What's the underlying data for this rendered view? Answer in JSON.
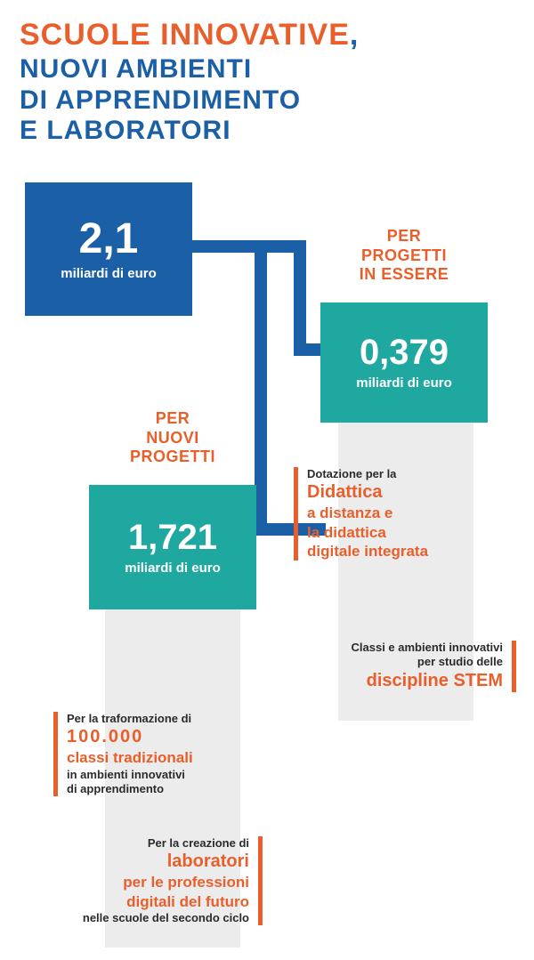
{
  "title": {
    "line1_orange": "SCUOLE INNOVATIVE",
    "comma": ",",
    "rest": "NUOVI AMBIENTI\nDI APPRENDIMENTO\nE LABORATORI"
  },
  "colors": {
    "orange": "#e95f2b",
    "blue": "#1b5fa6",
    "teal": "#1fa89f",
    "grey": "#ececec",
    "text": "#2b2b2b"
  },
  "boxes": {
    "main": {
      "value": "2,1",
      "unit": "miliardi di euro"
    },
    "existing": {
      "label": "PER\nPROGETTI\nIN ESSERE",
      "value": "0,379",
      "unit": "miliardi di euro"
    },
    "new": {
      "label": "PER\nNUOVI\nPROGETTI",
      "value": "1,721",
      "unit": "miliardi di euro"
    }
  },
  "callouts": {
    "didattica": {
      "pre": "Dotazione per la",
      "h1": "Didattica",
      "l2": "a distanza e",
      "l3": "la didattica",
      "l4": "digitale integrata"
    },
    "stem": {
      "pre": "Classi e ambienti innovativi\nper studio delle",
      "h": "discipline STEM"
    },
    "classi": {
      "pre": "Per la traformazione di",
      "h1": "100.000",
      "h2": "classi tradizionali",
      "post": "in ambienti innovativi\ndi apprendimento"
    },
    "lab": {
      "pre": "Per la creazione di",
      "h1": "laboratori",
      "l2": "per le professioni",
      "l3": "digitali del futuro",
      "post": "nelle scuole del secondo ciclo"
    }
  }
}
